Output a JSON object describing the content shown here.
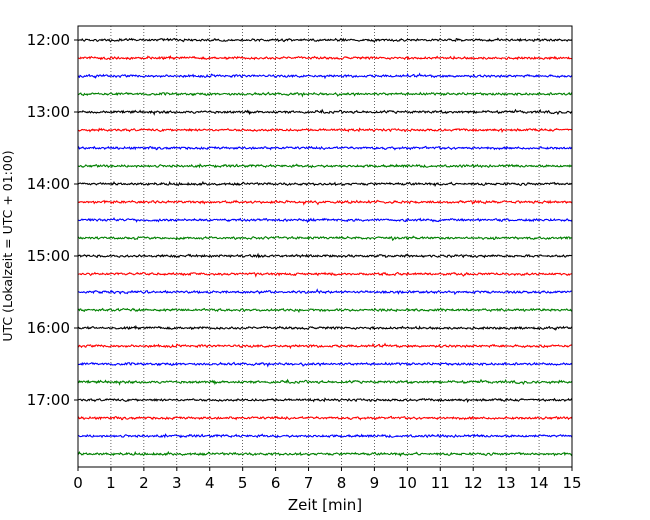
{
  "chart_data": {
    "type": "line",
    "title": "",
    "xlabel": "Zeit  [min]",
    "ylabel": "UTC (Lokalzeit = UTC + 01:00)",
    "x_range": [
      0,
      15
    ],
    "x_ticks": [
      "0",
      "1",
      "2",
      "3",
      "4",
      "5",
      "6",
      "7",
      "8",
      "9",
      "10",
      "11",
      "12",
      "13",
      "14",
      "15"
    ],
    "y_tick_labels": [
      "12:00",
      "13:00",
      "14:00",
      "15:00",
      "16:00",
      "17:00"
    ],
    "grid": "vertical dotted at each minute",
    "trace_interval_minutes": 15,
    "trace_start_times": [
      "12:00",
      "12:15",
      "12:30",
      "12:45",
      "13:00",
      "13:15",
      "13:30",
      "13:45",
      "14:00",
      "14:15",
      "14:30",
      "14:45",
      "15:00",
      "15:15",
      "15:30",
      "15:45",
      "16:00",
      "16:15",
      "16:30",
      "16:45",
      "17:00",
      "17:15",
      "17:30",
      "17:45"
    ],
    "trace_colors": [
      "#000000",
      "#ff0000",
      "#0000ff",
      "#008000"
    ]
  }
}
